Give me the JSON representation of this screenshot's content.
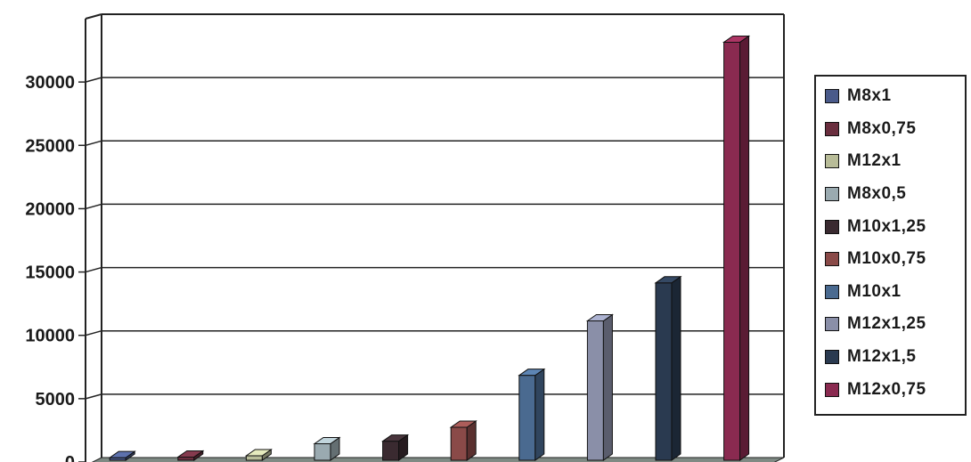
{
  "chart_data": {
    "type": "bar",
    "series": [
      {
        "name": "M8x1",
        "value": 200,
        "color": "#4a5a8a"
      },
      {
        "name": "M8x0,75",
        "value": 250,
        "color": "#6a2e3e"
      },
      {
        "name": "M12x1",
        "value": 350,
        "color": "#b8bc98"
      },
      {
        "name": "M8x0,5",
        "value": 1300,
        "color": "#9aaab0"
      },
      {
        "name": "M10x1,25",
        "value": 1500,
        "color": "#3a2a30"
      },
      {
        "name": "M10x0,75",
        "value": 2600,
        "color": "#8a4a48"
      },
      {
        "name": "M10x1",
        "value": 6700,
        "color": "#4a6a90"
      },
      {
        "name": "M12x1,25",
        "value": 11000,
        "color": "#8a8fa8"
      },
      {
        "name": "M12x1,5",
        "value": 14000,
        "color": "#2a3a50"
      },
      {
        "name": "M12x0,75",
        "value": 33000,
        "color": "#8a2a50"
      }
    ],
    "yticks": [
      "0",
      "5000",
      "10000",
      "15000",
      "20000",
      "25000",
      "30000"
    ],
    "ylim": [
      0,
      35000
    ],
    "grid": true,
    "legend_position": "right"
  }
}
